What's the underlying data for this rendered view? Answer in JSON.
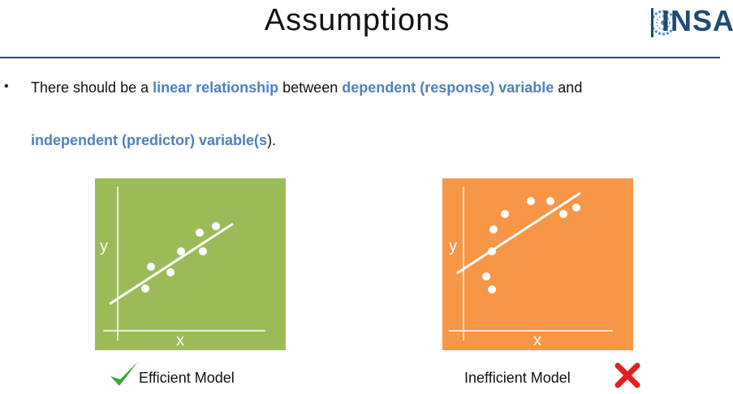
{
  "slide": {
    "title": "Assumptions",
    "logo_text": "INSAID"
  },
  "bullet": {
    "part1": "There should be a ",
    "hl1": "linear relationship",
    "part2": " between ",
    "hl2": "dependent (response) variable",
    "part3": " and",
    "hl3": "independent (predictor) variable(s",
    "part4": ")."
  },
  "panels": {
    "efficient": {
      "bg_color": "#9bbb59",
      "x_label": "x",
      "y_label": "y",
      "caption": "Efficient Model",
      "caption_icon": "checkmark-icon"
    },
    "inefficient": {
      "bg_color": "#f79646",
      "x_label": "x",
      "y_label": "y",
      "caption": "Inefficient Model",
      "caption_icon": "cross-icon"
    }
  },
  "colors": {
    "highlight": "#4e80c0",
    "rule": "#2b4a75",
    "check": "#3aa63a",
    "cross": "#e02020"
  }
}
